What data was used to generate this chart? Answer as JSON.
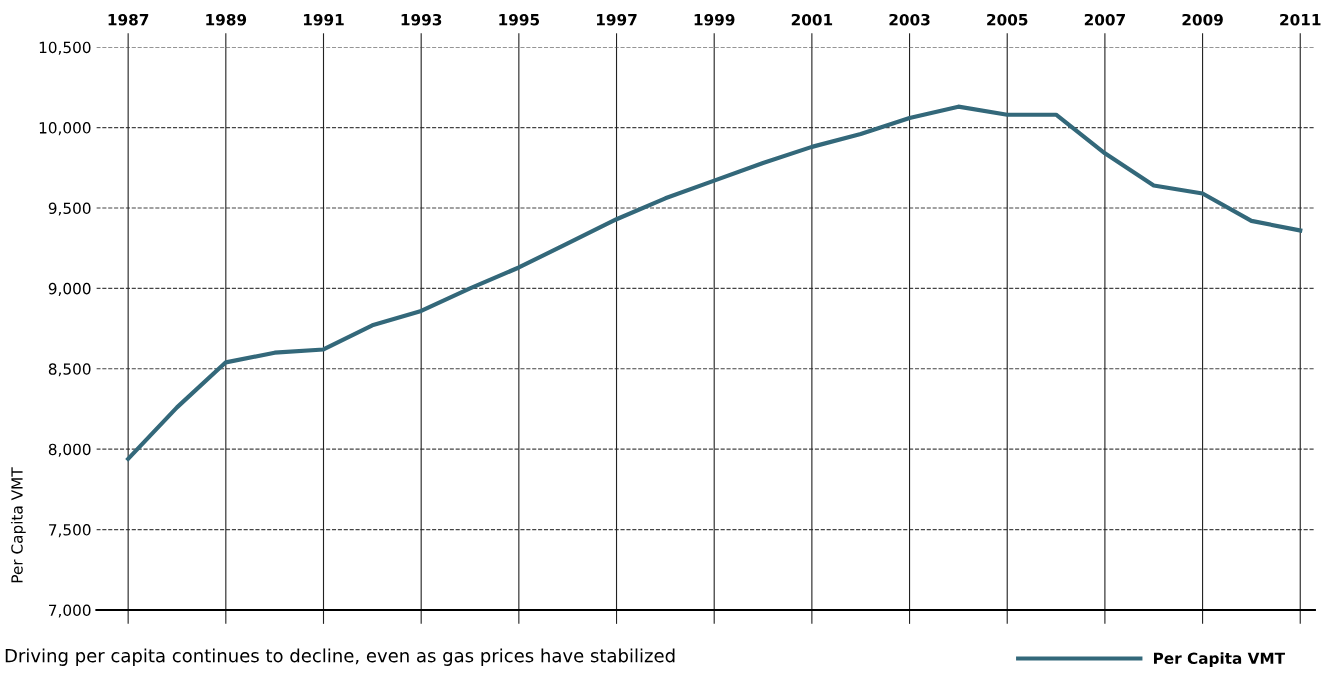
{
  "chart_data": {
    "type": "line",
    "ylabel": "Per Capita VMT",
    "x": [
      1987,
      1988,
      1989,
      1990,
      1991,
      1992,
      1993,
      1994,
      1995,
      1996,
      1997,
      1998,
      1999,
      2000,
      2001,
      2002,
      2003,
      2004,
      2005,
      2006,
      2007,
      2008,
      2009,
      2010,
      2011
    ],
    "series": [
      {
        "name": "Per Capita VMT",
        "color": "#33687a",
        "values": [
          7940,
          8260,
          8540,
          8600,
          8620,
          8770,
          8860,
          9000,
          9130,
          9280,
          9430,
          9560,
          9670,
          9780,
          9880,
          9960,
          10060,
          10130,
          10080,
          10080,
          9840,
          9640,
          9590,
          9420,
          9360
        ]
      }
    ],
    "xlim": [
      1986.35,
      2011.3
    ],
    "xticks": [
      1987,
      1989,
      1991,
      1993,
      1995,
      1997,
      1999,
      2001,
      2003,
      2005,
      2007,
      2009,
      2011
    ],
    "ylim": [
      7000,
      10500
    ],
    "yticks": [
      {
        "value": 7000,
        "label": "7,000"
      },
      {
        "value": 7500,
        "label": "7,500"
      },
      {
        "value": 8000,
        "label": "8,000"
      },
      {
        "value": 8500,
        "label": "8,500"
      },
      {
        "value": 9000,
        "label": "9,000"
      },
      {
        "value": 9500,
        "label": "9,500"
      },
      {
        "value": 10000,
        "label": "10,000"
      },
      {
        "value": 10500,
        "label": "10,500"
      }
    ],
    "grid": true,
    "legend": "bottom right",
    "line_style": "solid",
    "marker": "none",
    "annotations": [
      "Driving per capita continues to decline, even as gas prices have stabilized"
    ]
  }
}
